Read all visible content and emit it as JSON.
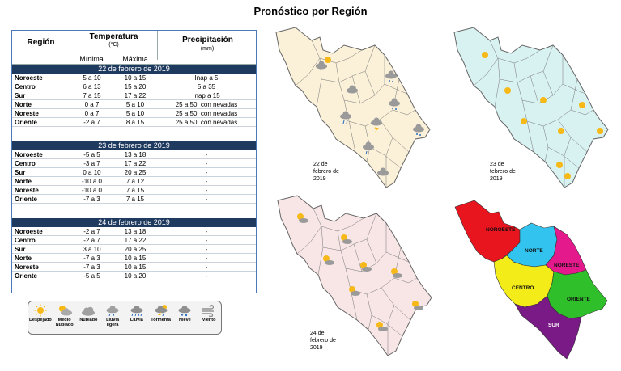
{
  "title": "Pronóstico por Región",
  "table": {
    "header": {
      "region": "Región",
      "temperature": "Temperatura",
      "temperature_unit": "(°C)",
      "min": "Mínima",
      "max": "Máxima",
      "precipitation": "Precipitación",
      "precipitation_unit": "(mm)"
    },
    "days": [
      {
        "date": "22 de febrero de 2019",
        "rows": [
          {
            "region": "Noroeste",
            "min": "5 a 10",
            "max": "10 a 15",
            "precip": "Inap a 5"
          },
          {
            "region": "Centro",
            "min": "6 a 13",
            "max": "15 a 20",
            "precip": "5 a 35"
          },
          {
            "region": "Sur",
            "min": "7 a 15",
            "max": "17 a 22",
            "precip": "Inap a 15"
          },
          {
            "region": "Norte",
            "min": "0 a 7",
            "max": "5 a 10",
            "precip": "25 a 50, con nevadas"
          },
          {
            "region": "Noreste",
            "min": "0 a 7",
            "max": "5 a 10",
            "precip": "25 a 50, con nevadas"
          },
          {
            "region": "Oriente",
            "min": "-2 a 7",
            "max": "8 a 15",
            "precip": "25 a 50, con nevadas"
          }
        ]
      },
      {
        "date": "23 de febrero de 2019",
        "rows": [
          {
            "region": "Noroeste",
            "min": "-5 a 5",
            "max": "13 a 18",
            "precip": "-"
          },
          {
            "region": "Centro",
            "min": "-3 a 7",
            "max": "17 a 22",
            "precip": "-"
          },
          {
            "region": "Sur",
            "min": "0 a 10",
            "max": "20 a 25",
            "precip": "-"
          },
          {
            "region": "Norte",
            "min": "-10 a 0",
            "max": "7 a 12",
            "precip": "-"
          },
          {
            "region": "Noreste",
            "min": "-10 a 0",
            "max": "7 a 15",
            "precip": "-"
          },
          {
            "region": "Oriente",
            "min": "-7 a 3",
            "max": "7 a 15",
            "precip": "-"
          }
        ]
      },
      {
        "date": "24 de febrero de 2019",
        "rows": [
          {
            "region": "Noroeste",
            "min": "-2 a 7",
            "max": "13 a 18",
            "precip": "-"
          },
          {
            "region": "Centro",
            "min": "-2 a 7",
            "max": "17 a 22",
            "precip": "-"
          },
          {
            "region": "Sur",
            "min": "3 a 10",
            "max": "20 a 25",
            "precip": "-"
          },
          {
            "region": "Norte",
            "min": "-7 a 3",
            "max": "10 a 15",
            "precip": "-"
          },
          {
            "region": "Noreste",
            "min": "-7 a 3",
            "max": "10 a 15",
            "precip": "-"
          },
          {
            "region": "Oriente",
            "min": "-5 a 5",
            "max": "10 a 20",
            "precip": "-"
          }
        ]
      }
    ]
  },
  "legend": {
    "items": [
      {
        "label": "Despejado",
        "icon": "sun-icon"
      },
      {
        "label": "Medio Nublado",
        "icon": "partly-cloudy-icon"
      },
      {
        "label": "Nublado",
        "icon": "cloud-icon"
      },
      {
        "label": "Lluvia ligera",
        "icon": "light-rain-icon"
      },
      {
        "label": "Lluvia",
        "icon": "rain-icon"
      },
      {
        "label": "Tormenta",
        "icon": "storm-icon"
      },
      {
        "label": "Nieve",
        "icon": "snow-icon"
      },
      {
        "label": "Viento",
        "icon": "wind-icon"
      }
    ]
  },
  "maps": [
    {
      "date_line1": "22 de",
      "date_line2": "febrero de",
      "date_line3": "2019",
      "fill": "#fbf0d8"
    },
    {
      "date_line1": "23 de",
      "date_line2": "febrero de",
      "date_line3": "2019",
      "fill": "#d8f1f1"
    },
    {
      "date_line1": "24 de",
      "date_line2": "febrero de",
      "date_line3": "2019",
      "fill": "#f8e6e6"
    }
  ],
  "region_map": {
    "labels": {
      "noroeste": "NOROESTE",
      "norte": "NORTE",
      "noreste": "NORESTE",
      "centro": "CENTRO",
      "oriente": "ORIENTE",
      "sur": "SUR"
    },
    "colors": {
      "noroeste": "#e8141e",
      "norte": "#33c3ef",
      "noreste": "#e4198c",
      "centro": "#f3ec19",
      "oriente": "#2fbf2a",
      "sur": "#7a1a86"
    }
  }
}
